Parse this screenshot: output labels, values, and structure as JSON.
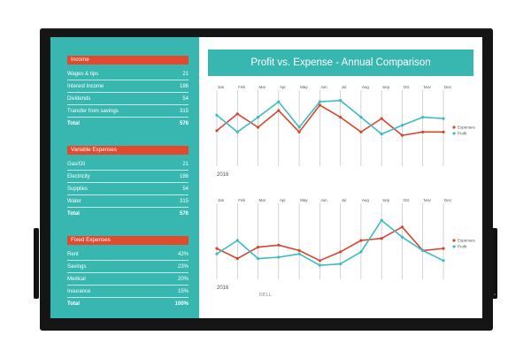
{
  "title": "Profit vs. Expense - Annual Comparison",
  "brand": "DELL",
  "colors": {
    "teal": "#38b6b0",
    "red": "#e2492d",
    "expenses_line": "#d8452f",
    "profit_line": "#3bbcc4"
  },
  "sidebar": {
    "income": {
      "header": "Income",
      "rows": [
        {
          "label": "Wages & tips",
          "value": "21"
        },
        {
          "label": "Interest Income",
          "value": "186"
        },
        {
          "label": "Dividends",
          "value": "54"
        },
        {
          "label": "Transfer from savings",
          "value": "315"
        },
        {
          "label": "Total",
          "value": "576"
        }
      ]
    },
    "variable": {
      "header": "Variable Expenses",
      "rows": [
        {
          "label": "Gas/Oil",
          "value": "21"
        },
        {
          "label": "Electricity",
          "value": "186"
        },
        {
          "label": "Supplies",
          "value": "54"
        },
        {
          "label": "Water",
          "value": "315"
        },
        {
          "label": "Total",
          "value": "576"
        }
      ]
    },
    "fixed": {
      "header": "Fixed Expenses",
      "rows": [
        {
          "label": "Rent",
          "value": "42%"
        },
        {
          "label": "Savings",
          "value": "23%"
        },
        {
          "label": "Medical",
          "value": "20%"
        },
        {
          "label": "Insurance",
          "value": "15%"
        },
        {
          "label": "Total",
          "value": "100%"
        }
      ]
    }
  },
  "chart_data": [
    {
      "type": "line",
      "categories": [
        "Jan",
        "Feb",
        "Mar",
        "Apr",
        "May",
        "Jun",
        "Jul",
        "Aug",
        "Sep",
        "Oct",
        "Nov",
        "Dec"
      ],
      "year_label": "2016",
      "ylim": [
        0,
        10
      ],
      "grid": "vertical",
      "legend_position": "right",
      "series": [
        {
          "name": "Expenses",
          "color": "#d8452f",
          "values": [
            4.5,
            7.0,
            5.0,
            7.5,
            4.3,
            8.3,
            6.5,
            4.3,
            6.3,
            3.8,
            4.3,
            4.3
          ]
        },
        {
          "name": "Profit",
          "color": "#3bbcc4",
          "values": [
            6.8,
            4.3,
            6.5,
            8.8,
            5.0,
            8.8,
            9.0,
            6.5,
            4.0,
            5.3,
            6.5,
            6.3
          ]
        }
      ]
    },
    {
      "type": "line",
      "categories": [
        "Jan",
        "Feb",
        "Mar",
        "Apr",
        "May",
        "Jun",
        "Jul",
        "Aug",
        "Sep",
        "Oct",
        "Nov",
        "Dec"
      ],
      "year_label": "2016",
      "ylim": [
        0,
        10
      ],
      "grid": "vertical",
      "legend_position": "right",
      "series": [
        {
          "name": "Expenses",
          "color": "#d8452f",
          "values": [
            3.8,
            2.3,
            4.0,
            4.3,
            3.5,
            2.0,
            3.3,
            5.0,
            5.3,
            7.0,
            3.5,
            3.8
          ]
        },
        {
          "name": "Profit",
          "color": "#3bbcc4",
          "values": [
            3.0,
            5.0,
            2.3,
            2.5,
            3.0,
            1.3,
            1.5,
            3.3,
            8.0,
            5.5,
            3.5,
            2.0
          ]
        }
      ]
    }
  ]
}
